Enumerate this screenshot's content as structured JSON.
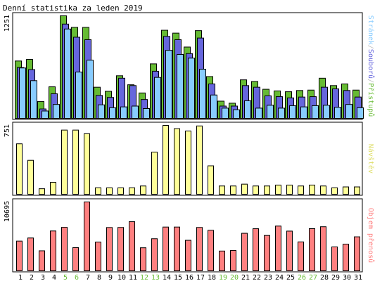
{
  "chart_data": {
    "type": "bar",
    "title": "Denní statistika za leden 2019",
    "categories": [
      "1",
      "2",
      "3",
      "4",
      "5",
      "6",
      "7",
      "8",
      "9",
      "10",
      "11",
      "12",
      "13",
      "14",
      "15",
      "16",
      "17",
      "18",
      "19",
      "20",
      "21",
      "22",
      "23",
      "24",
      "25",
      "26",
      "27",
      "28",
      "29",
      "30",
      "31"
    ],
    "weekend_days": [
      "5",
      "6",
      "12",
      "13",
      "19",
      "20",
      "26",
      "27"
    ],
    "panels": [
      {
        "id": "traffic",
        "ylabel": "Stránek/Souborů/Přístupů",
        "ylabel_parts": [
          "Stránek",
          "/",
          "Souborů",
          "/",
          "Přístupů"
        ],
        "ymax_label": "1251",
        "ylim": [
          0,
          1251
        ],
        "series": [
          {
            "name": "Přístupů",
            "color": "#66bb33",
            "values": [
              700,
              720,
              205,
              385,
              1251,
              1110,
              1110,
              380,
              330,
              520,
              410,
              310,
              665,
              1075,
              1040,
              870,
              1070,
              510,
              210,
              185,
              470,
              450,
              355,
              335,
              325,
              340,
              345,
              490,
              400,
              420,
              345
            ]
          },
          {
            "name": "Souborů",
            "color": "#6666dd",
            "values": [
              620,
              595,
              115,
              300,
              1150,
              990,
              960,
              280,
              255,
              490,
              400,
              230,
              575,
              1000,
              960,
              790,
              980,
              420,
              150,
              150,
              400,
              380,
              275,
              265,
              250,
              260,
              265,
              380,
              360,
              340,
              260
            ]
          },
          {
            "name": "Stránek",
            "color": "#88ccff",
            "values": [
              615,
              460,
              90,
              170,
              1090,
              565,
              710,
              165,
              130,
              140,
              150,
              120,
              500,
              830,
              780,
              735,
              600,
              285,
              125,
              105,
              215,
              125,
              160,
              125,
              155,
              140,
              155,
              160,
              135,
              170,
              130
            ]
          }
        ]
      },
      {
        "id": "visits",
        "ylabel": "Návštěv",
        "ymax_label": "751",
        "ylim": [
          0,
          751
        ],
        "series": [
          {
            "name": "Návštěv",
            "color": "#ffff99",
            "values": [
              550,
              370,
              60,
              130,
              700,
              700,
              660,
              70,
              70,
              70,
              70,
              90,
              460,
              751,
              715,
              690,
              745,
              310,
              90,
              90,
              110,
              90,
              90,
              100,
              100,
              90,
              100,
              90,
              70,
              80,
              80
            ]
          }
        ]
      },
      {
        "id": "volume",
        "ylabel": "Objem přenosů",
        "ymax_label": "10695",
        "ylim": [
          0,
          10695
        ],
        "series": [
          {
            "name": "Objem přenosů",
            "color": "#ff8080",
            "values": [
              4620,
              5100,
              3110,
              6190,
              6760,
              3610,
              10695,
              4460,
              6730,
              6740,
              7630,
              3580,
              4990,
              6800,
              6800,
              4740,
              6740,
              6290,
              3070,
              3170,
              5830,
              6540,
              5490,
              6950,
              6170,
              4490,
              6550,
              6850,
              3710,
              4140,
              5280
            ]
          }
        ]
      }
    ]
  }
}
